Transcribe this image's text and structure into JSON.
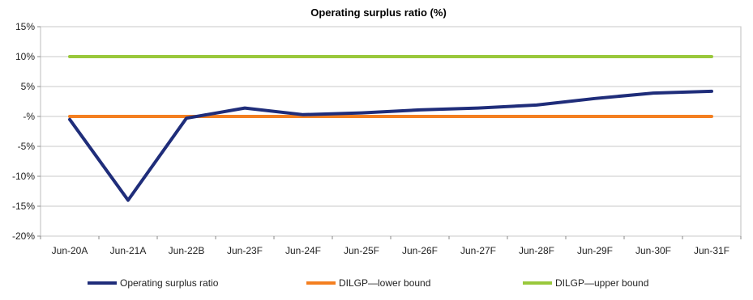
{
  "chart_data": {
    "type": "line",
    "title": "Operating surplus ratio (%)",
    "xlabel": "",
    "ylabel": "",
    "categories": [
      "Jun-20A",
      "Jun-21A",
      "Jun-22B",
      "Jun-23F",
      "Jun-24F",
      "Jun-25F",
      "Jun-26F",
      "Jun-27F",
      "Jun-28F",
      "Jun-29F",
      "Jun-30F",
      "Jun-31F"
    ],
    "ylim": [
      -20,
      15
    ],
    "yticks": [
      15,
      10,
      5,
      0,
      -5,
      -10,
      -15,
      -20
    ],
    "ytick_labels": [
      "15%",
      "10%",
      "5%",
      "-%",
      "-5%",
      "-10%",
      "-15%",
      "-20%"
    ],
    "grid": true,
    "legend_position": "bottom",
    "series": [
      {
        "name": "Operating surplus ratio",
        "color": "#1f2d7a",
        "values": [
          -0.5,
          -14,
          -0.3,
          1.4,
          0.3,
          0.6,
          1.1,
          1.4,
          1.9,
          3.0,
          3.9,
          4.2
        ]
      },
      {
        "name": "DILGP—lower bound",
        "color": "#f47f20",
        "values": [
          0,
          0,
          0,
          0,
          0,
          0,
          0,
          0,
          0,
          0,
          0,
          0
        ]
      },
      {
        "name": "DILGP—upper bound",
        "color": "#99c83c",
        "values": [
          10,
          10,
          10,
          10,
          10,
          10,
          10,
          10,
          10,
          10,
          10,
          10
        ]
      }
    ]
  }
}
